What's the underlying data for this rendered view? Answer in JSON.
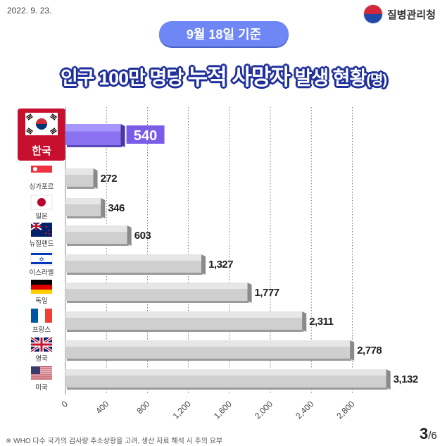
{
  "header": {
    "date": "2022. 9. 23.",
    "agency": "질병관리청",
    "badge": "9월 18일 기준",
    "title_part1": "인구 100만 명당 ",
    "title_highlight": "누적 사망자",
    "title_part2": " 발생 현황",
    "title_unit": "(명)"
  },
  "chart_data": {
    "type": "bar",
    "orientation": "horizontal",
    "categories": [
      "한국",
      "싱가포르",
      "일본",
      "뉴질랜드",
      "이스라엘",
      "독일",
      "프랑스",
      "영국",
      "미국"
    ],
    "values": [
      540,
      272,
      346,
      603,
      1327,
      1777,
      2311,
      2778,
      3132
    ],
    "value_labels": [
      "540",
      "272",
      "346",
      "603",
      "1,327",
      "1,777",
      "2,311",
      "2,778",
      "3,132"
    ],
    "xticks": [
      "0",
      "400",
      "800",
      "1,200",
      "1,600",
      "2,000",
      "2,400",
      "2,800"
    ],
    "xlim": [
      0,
      3132
    ],
    "highlight_category": "한국",
    "colors": {
      "highlight": "#8a72f0",
      "bar": "#cfcfcf",
      "grid": "#555555"
    },
    "grid": true
  },
  "footer": {
    "note": "※ WHO 다수 국가의 검사량 추소상황을 고려, 생산 자료 해석 시 주의 요부",
    "page_current": "3",
    "page_total": "/6"
  }
}
